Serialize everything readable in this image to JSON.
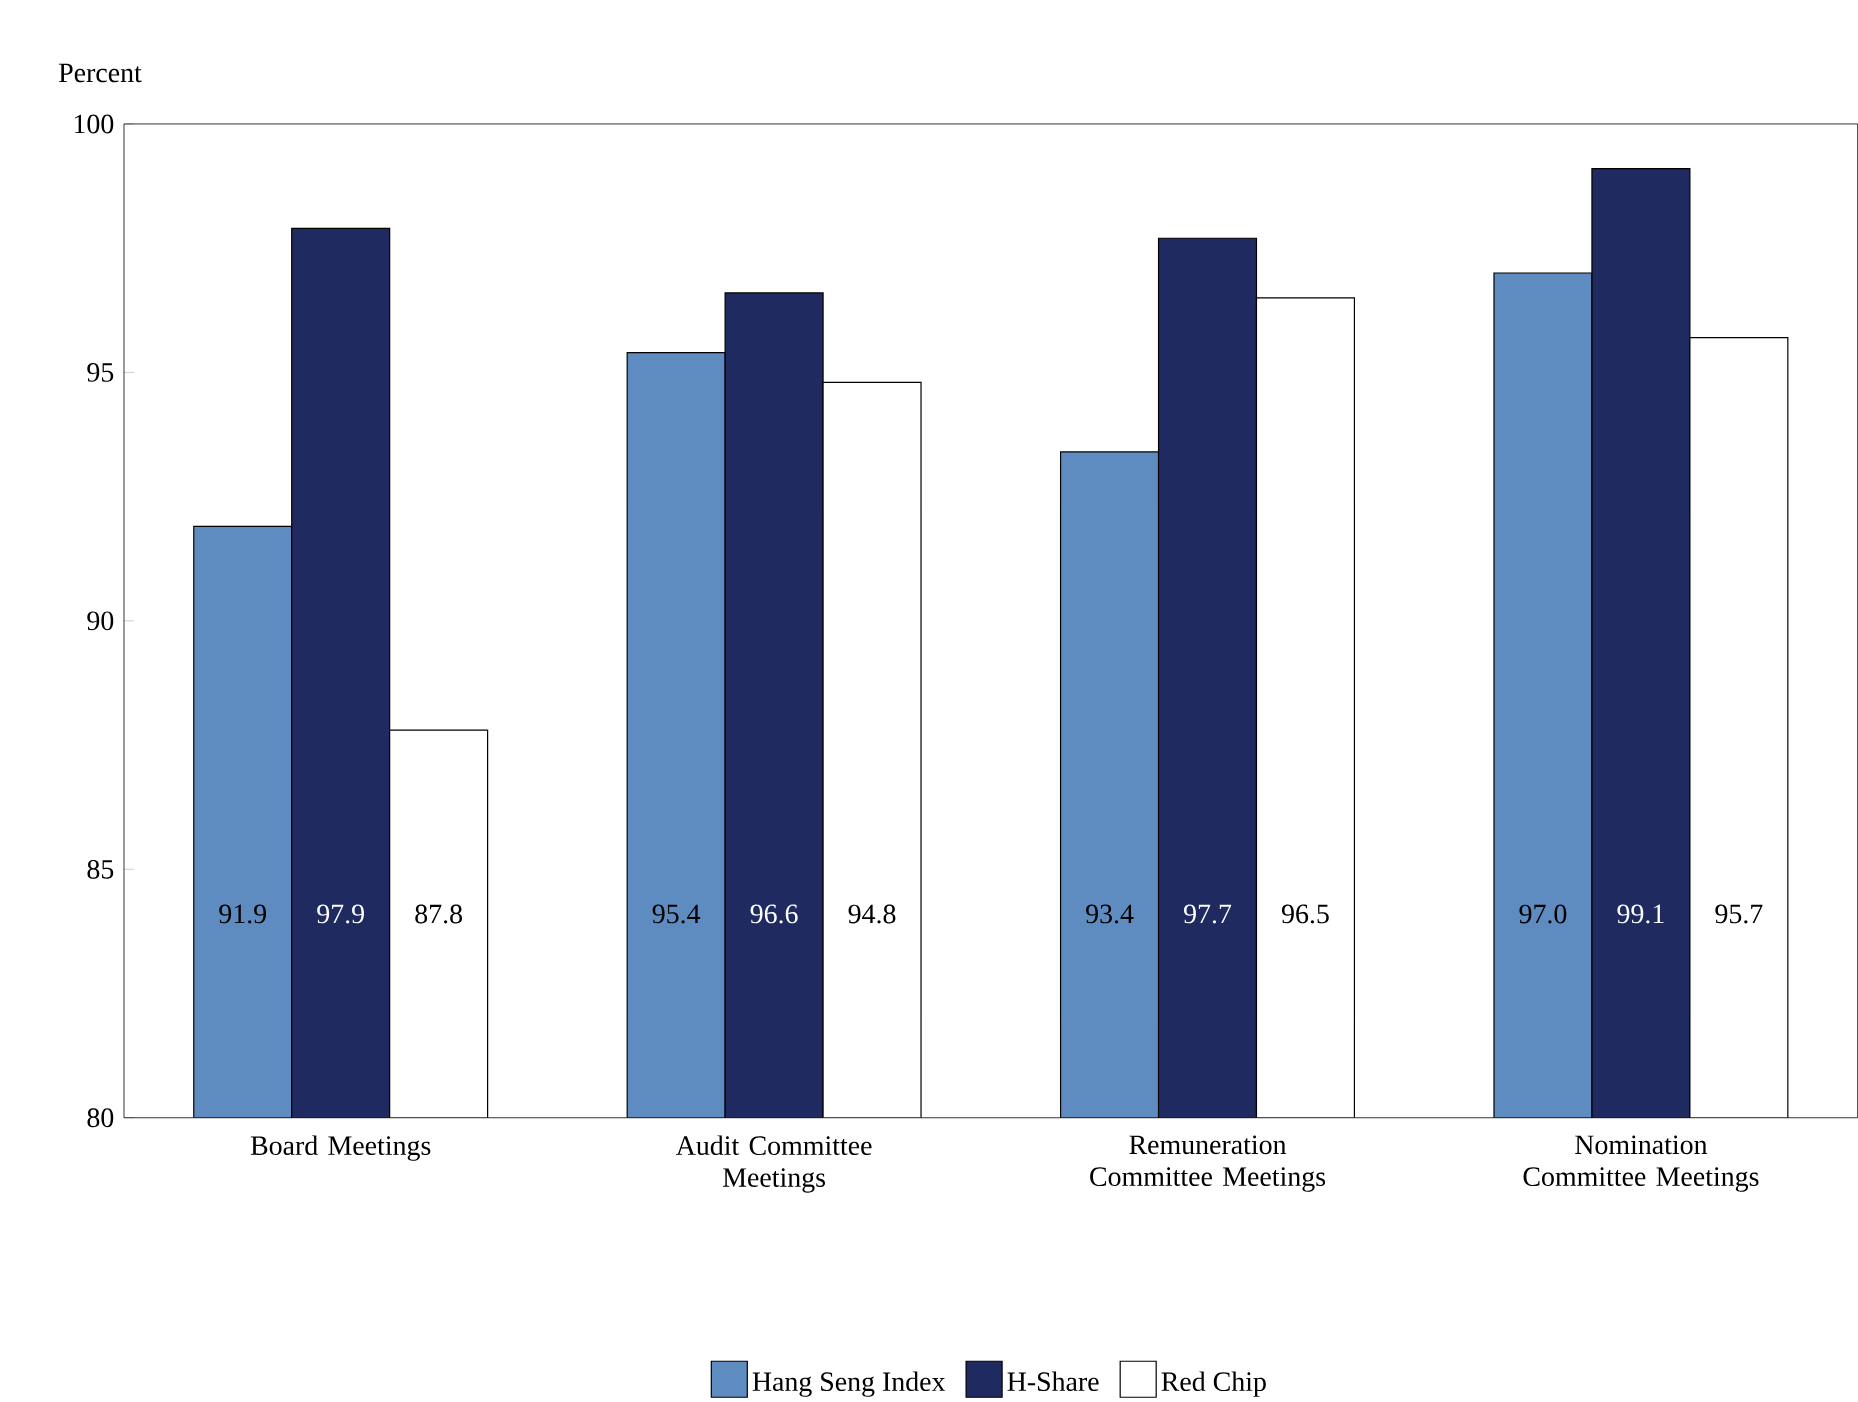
{
  "chart_data": {
    "type": "bar",
    "ylabel": "Percent",
    "categories": [
      "Board Meetings",
      "Audit Committee Meetings",
      "Remuneration Committee Meetings",
      "Nomination Committee Meetings"
    ],
    "series": [
      {
        "name": "Hang Seng Index",
        "color": "#5f8cc0",
        "values": [
          91.9,
          95.4,
          93.4,
          97.0
        ],
        "value_labels": [
          "91.9",
          "95.4",
          "93.4",
          "97.0"
        ]
      },
      {
        "name": "H-Share",
        "color": "#1f2a60",
        "values": [
          97.9,
          96.6,
          97.7,
          99.1
        ],
        "value_labels": [
          "97.9",
          "96.6",
          "97.7",
          "99.1"
        ]
      },
      {
        "name": "Red Chip",
        "color": "#ffffff",
        "values": [
          87.8,
          94.8,
          96.5,
          95.7
        ],
        "value_labels": [
          "87.8",
          "94.8",
          "96.5",
          "95.7"
        ]
      }
    ],
    "ylim": [
      80,
      100
    ],
    "yticks": [
      80,
      85,
      90,
      95,
      100
    ],
    "grid": false,
    "legend": "bottom"
  }
}
